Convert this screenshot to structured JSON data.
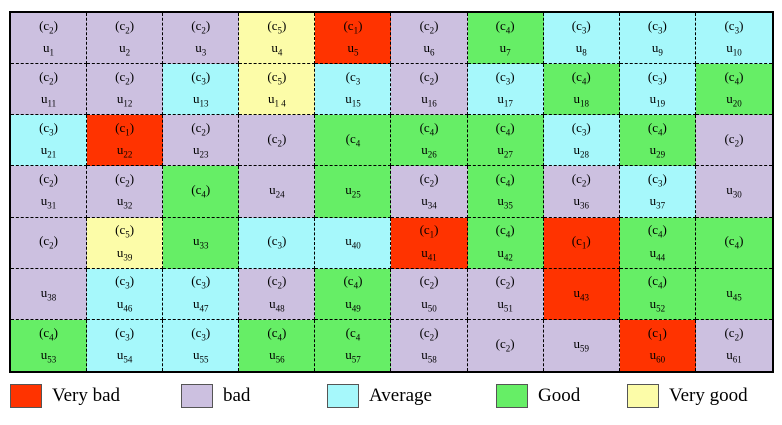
{
  "colors": {
    "c1": "#ff3300",
    "c2": "#ccc0e0",
    "c3": "#a6f8fb",
    "c4": "#66ee66",
    "c5": "#fcfca8"
  },
  "cells": [
    {
      "r": 1,
      "c": 1,
      "rs": 1,
      "cs": 1,
      "cls": "c2",
      "label": "(c",
      "sub": "2",
      "suffix": ")",
      "unit": "u",
      "unit_sub": "1"
    },
    {
      "r": 1,
      "c": 2,
      "rs": 1,
      "cs": 1,
      "cls": "c2",
      "label": "(c",
      "sub": "2",
      "suffix": ")",
      "unit": "u",
      "unit_sub": "2"
    },
    {
      "r": 1,
      "c": 3,
      "rs": 1,
      "cs": 1,
      "cls": "c2",
      "label": "(c",
      "sub": "2",
      "suffix": ")",
      "unit": "u",
      "unit_sub": "3"
    },
    {
      "r": 1,
      "c": 4,
      "rs": 1,
      "cs": 1,
      "cls": "c5",
      "label": "(c",
      "sub": "5",
      "suffix": ")",
      "unit": "u",
      "unit_sub": "4"
    },
    {
      "r": 1,
      "c": 5,
      "rs": 1,
      "cs": 1,
      "cls": "c1",
      "label": "(c",
      "sub": "1",
      "suffix": ")",
      "unit": "u",
      "unit_sub": "5"
    },
    {
      "r": 1,
      "c": 6,
      "rs": 1,
      "cs": 1,
      "cls": "c2",
      "label": "(c",
      "sub": "2",
      "suffix": ")",
      "unit": "u",
      "unit_sub": "6"
    },
    {
      "r": 1,
      "c": 7,
      "rs": 1,
      "cs": 1,
      "cls": "c4",
      "label": "(c",
      "sub": "4",
      "suffix": ")",
      "unit": "u",
      "unit_sub": "7"
    },
    {
      "r": 1,
      "c": 8,
      "rs": 1,
      "cs": 1,
      "cls": "c3",
      "label": "(c",
      "sub": "3",
      "suffix": ")",
      "unit": "u",
      "unit_sub": "8"
    },
    {
      "r": 1,
      "c": 9,
      "rs": 1,
      "cs": 1,
      "cls": "c3",
      "label": "(c",
      "sub": "3",
      "suffix": ")",
      "unit": "u",
      "unit_sub": "9"
    },
    {
      "r": 1,
      "c": 10,
      "rs": 1,
      "cs": 1,
      "cls": "c3",
      "label": "(c",
      "sub": "3",
      "suffix": ")",
      "unit": "u",
      "unit_sub": "10"
    },
    {
      "r": 2,
      "c": 1,
      "rs": 1,
      "cs": 1,
      "cls": "c2",
      "label": "(c",
      "sub": "2",
      "suffix": ")",
      "unit": "u",
      "unit_sub": "11"
    },
    {
      "r": 2,
      "c": 2,
      "rs": 1,
      "cs": 1,
      "cls": "c2",
      "label": "(c",
      "sub": "2",
      "suffix": ")",
      "unit": "u",
      "unit_sub": "12"
    },
    {
      "r": 2,
      "c": 3,
      "rs": 1,
      "cs": 1,
      "cls": "c3",
      "label": "(c",
      "sub": "3",
      "suffix": ")",
      "unit": "u",
      "unit_sub": "13"
    },
    {
      "r": 2,
      "c": 4,
      "rs": 1,
      "cs": 1,
      "cls": "c5",
      "label": "(c",
      "sub": "5",
      "suffix": ")",
      "unit": "u",
      "unit_sub": "1 4"
    },
    {
      "r": 2,
      "c": 5,
      "rs": 1,
      "cs": 1,
      "cls": "c3",
      "label": "(c",
      "sub": "3",
      "suffix": "",
      "unit": "u",
      "unit_sub": "15"
    },
    {
      "r": 2,
      "c": 6,
      "rs": 1,
      "cs": 1,
      "cls": "c2",
      "label": "(c",
      "sub": "2",
      "suffix": ")",
      "unit": "u",
      "unit_sub": "16"
    },
    {
      "r": 2,
      "c": 7,
      "rs": 1,
      "cs": 1,
      "cls": "c3",
      "label": "(c",
      "sub": "3",
      "suffix": ")",
      "unit": "u",
      "unit_sub": "17"
    },
    {
      "r": 2,
      "c": 8,
      "rs": 1,
      "cs": 1,
      "cls": "c4",
      "label": "(c",
      "sub": "4",
      "suffix": ")",
      "unit": "u",
      "unit_sub": "18"
    },
    {
      "r": 2,
      "c": 9,
      "rs": 1,
      "cs": 1,
      "cls": "c3",
      "label": "(c",
      "sub": "3",
      "suffix": ")",
      "unit": "u",
      "unit_sub": "19"
    },
    {
      "r": 2,
      "c": 10,
      "rs": 1,
      "cs": 1,
      "cls": "c4",
      "label": "(c",
      "sub": "4",
      "suffix": ")",
      "unit": "u",
      "unit_sub": "20"
    },
    {
      "r": 3,
      "c": 1,
      "rs": 1,
      "cs": 1,
      "cls": "c3",
      "label": "(c",
      "sub": "3",
      "suffix": ")",
      "unit": "u",
      "unit_sub": "21"
    },
    {
      "r": 3,
      "c": 2,
      "rs": 1,
      "cs": 1,
      "cls": "c1",
      "label": "(c",
      "sub": "1",
      "suffix": ")",
      "unit": "u",
      "unit_sub": "22"
    },
    {
      "r": 3,
      "c": 3,
      "rs": 1,
      "cs": 1,
      "cls": "c2",
      "label": "(c",
      "sub": "2",
      "suffix": ")",
      "unit": "u",
      "unit_sub": "23"
    },
    {
      "r": 3,
      "c": 4,
      "rs": 1,
      "cs": 1,
      "cls": "c2",
      "label": "(c",
      "sub": "2",
      "suffix": ")",
      "unit": "",
      "unit_sub": ""
    },
    {
      "r": 3,
      "c": 5,
      "rs": 1,
      "cs": 1,
      "cls": "c4",
      "label": "(c",
      "sub": "4",
      "suffix": "",
      "unit": "",
      "unit_sub": ""
    },
    {
      "r": 3,
      "c": 6,
      "rs": 1,
      "cs": 1,
      "cls": "c4",
      "label": "(c",
      "sub": "4",
      "suffix": ")",
      "unit": "u",
      "unit_sub": "26"
    },
    {
      "r": 3,
      "c": 7,
      "rs": 1,
      "cs": 1,
      "cls": "c4",
      "label": "(c",
      "sub": "4",
      "suffix": ")",
      "unit": "u",
      "unit_sub": "27"
    },
    {
      "r": 3,
      "c": 8,
      "rs": 1,
      "cs": 1,
      "cls": "c3",
      "label": "(c",
      "sub": "3",
      "suffix": ")",
      "unit": "u",
      "unit_sub": "28"
    },
    {
      "r": 3,
      "c": 9,
      "rs": 1,
      "cs": 1,
      "cls": "c4",
      "label": "(c",
      "sub": "4",
      "suffix": ")",
      "unit": "u",
      "unit_sub": "29"
    },
    {
      "r": 3,
      "c": 10,
      "rs": 1,
      "cs": 1,
      "cls": "c2",
      "label": "(c",
      "sub": "2",
      "suffix": ")",
      "unit": "",
      "unit_sub": ""
    },
    {
      "r": 4,
      "c": 1,
      "rs": 1,
      "cs": 1,
      "cls": "c2",
      "label": "(c",
      "sub": "2",
      "suffix": ")",
      "unit": "u",
      "unit_sub": "31"
    },
    {
      "r": 4,
      "c": 2,
      "rs": 1,
      "cs": 1,
      "cls": "c2",
      "label": "(c",
      "sub": "2",
      "suffix": ")",
      "unit": "u",
      "unit_sub": "32"
    },
    {
      "r": 4,
      "c": 3,
      "rs": 1,
      "cs": 1,
      "cls": "c4",
      "label": "(c",
      "sub": "4",
      "suffix": ")",
      "unit": "",
      "unit_sub": ""
    },
    {
      "r": 4,
      "c": 4,
      "rs": 1,
      "cs": 1,
      "cls": "c2",
      "label": "",
      "sub": "",
      "suffix": "",
      "unit": "u",
      "unit_sub": "24"
    },
    {
      "r": 4,
      "c": 5,
      "rs": 1,
      "cs": 1,
      "cls": "c4",
      "label": "",
      "sub": "",
      "suffix": "",
      "unit": "u",
      "unit_sub": "25"
    },
    {
      "r": 4,
      "c": 6,
      "rs": 1,
      "cs": 1,
      "cls": "c2",
      "label": "(c",
      "sub": "2",
      "suffix": ")",
      "unit": "u",
      "unit_sub": "34"
    },
    {
      "r": 4,
      "c": 7,
      "rs": 1,
      "cs": 1,
      "cls": "c4",
      "label": "(c",
      "sub": "4",
      "suffix": ")",
      "unit": "u",
      "unit_sub": "35"
    },
    {
      "r": 4,
      "c": 8,
      "rs": 1,
      "cs": 1,
      "cls": "c2",
      "label": "(c",
      "sub": "2",
      "suffix": ")",
      "unit": "u",
      "unit_sub": "36"
    },
    {
      "r": 4,
      "c": 9,
      "rs": 1,
      "cs": 1,
      "cls": "c3",
      "label": "(c",
      "sub": "3",
      "suffix": ")",
      "unit": "u",
      "unit_sub": "37"
    },
    {
      "r": 4,
      "c": 10,
      "rs": 1,
      "cs": 1,
      "cls": "c2",
      "label": "",
      "sub": "",
      "suffix": "",
      "unit": "u",
      "unit_sub": "30"
    },
    {
      "r": 5,
      "c": 1,
      "rs": 1,
      "cs": 1,
      "cls": "c2",
      "label": "(c",
      "sub": "2",
      "suffix": ")",
      "unit": "",
      "unit_sub": ""
    },
    {
      "r": 5,
      "c": 2,
      "rs": 1,
      "cs": 1,
      "cls": "c5",
      "label": "(c",
      "sub": "5",
      "suffix": ")",
      "unit": "u",
      "unit_sub": "39"
    },
    {
      "r": 5,
      "c": 3,
      "rs": 1,
      "cs": 1,
      "cls": "c4",
      "label": "",
      "sub": "",
      "suffix": "",
      "unit": "u",
      "unit_sub": "33"
    },
    {
      "r": 5,
      "c": 4,
      "rs": 1,
      "cs": 1,
      "cls": "c3",
      "label": "(c",
      "sub": "3",
      "suffix": ")",
      "unit": "",
      "unit_sub": ""
    },
    {
      "r": 5,
      "c": 5,
      "rs": 1,
      "cs": 1,
      "cls": "c3",
      "label": "",
      "sub": "",
      "suffix": "",
      "unit": "u",
      "unit_sub": "40"
    },
    {
      "r": 5,
      "c": 6,
      "rs": 1,
      "cs": 1,
      "cls": "c1",
      "label": "(c",
      "sub": "1",
      "suffix": ")",
      "unit": "u",
      "unit_sub": "41"
    },
    {
      "r": 5,
      "c": 7,
      "rs": 1,
      "cs": 1,
      "cls": "c4",
      "label": "(c",
      "sub": "4",
      "suffix": ")",
      "unit": "u",
      "unit_sub": "42"
    },
    {
      "r": 5,
      "c": 8,
      "rs": 1,
      "cs": 1,
      "cls": "c1",
      "label": "(c",
      "sub": "1",
      "suffix": ")",
      "unit": "",
      "unit_sub": ""
    },
    {
      "r": 5,
      "c": 9,
      "rs": 1,
      "cs": 1,
      "cls": "c4",
      "label": "(c",
      "sub": "4",
      "suffix": ")",
      "unit": "u",
      "unit_sub": "44"
    },
    {
      "r": 5,
      "c": 10,
      "rs": 1,
      "cs": 1,
      "cls": "c4",
      "label": "(c",
      "sub": "4",
      "suffix": ")",
      "unit": "",
      "unit_sub": ""
    },
    {
      "r": 6,
      "c": 1,
      "rs": 1,
      "cs": 1,
      "cls": "c2",
      "label": "",
      "sub": "",
      "suffix": "",
      "unit": "u",
      "unit_sub": "38"
    },
    {
      "r": 6,
      "c": 2,
      "rs": 1,
      "cs": 1,
      "cls": "c3",
      "label": "(c",
      "sub": "3",
      "suffix": ")",
      "unit": "u",
      "unit_sub": "46"
    },
    {
      "r": 6,
      "c": 3,
      "rs": 1,
      "cs": 1,
      "cls": "c3",
      "label": "(c",
      "sub": "3",
      "suffix": ")",
      "unit": "u",
      "unit_sub": "47"
    },
    {
      "r": 6,
      "c": 4,
      "rs": 1,
      "cs": 1,
      "cls": "c2",
      "label": "(c",
      "sub": "2",
      "suffix": ")",
      "unit": "u",
      "unit_sub": "48"
    },
    {
      "r": 6,
      "c": 5,
      "rs": 1,
      "cs": 1,
      "cls": "c4",
      "label": "(c",
      "sub": "4",
      "suffix": ")",
      "unit": "u",
      "unit_sub": "49"
    },
    {
      "r": 6,
      "c": 6,
      "rs": 1,
      "cs": 1,
      "cls": "c2",
      "label": "(c",
      "sub": "2",
      "suffix": ")",
      "unit": "u",
      "unit_sub": "50"
    },
    {
      "r": 6,
      "c": 7,
      "rs": 1,
      "cs": 1,
      "cls": "c2",
      "label": "(c",
      "sub": "2",
      "suffix": ")",
      "unit": "u",
      "unit_sub": "51"
    },
    {
      "r": 6,
      "c": 8,
      "rs": 1,
      "cs": 1,
      "cls": "c1",
      "label": "",
      "sub": "",
      "suffix": "",
      "unit": "u",
      "unit_sub": "43"
    },
    {
      "r": 6,
      "c": 9,
      "rs": 1,
      "cs": 1,
      "cls": "c4",
      "label": "(c",
      "sub": "4",
      "suffix": ")",
      "unit": "u",
      "unit_sub": "52"
    },
    {
      "r": 6,
      "c": 10,
      "rs": 1,
      "cs": 1,
      "cls": "c4",
      "label": "",
      "sub": "",
      "suffix": "",
      "unit": "u",
      "unit_sub": "45"
    },
    {
      "r": 7,
      "c": 1,
      "rs": 1,
      "cs": 1,
      "cls": "c4",
      "label": "(c",
      "sub": "4",
      "suffix": ")",
      "unit": "u",
      "unit_sub": "53"
    },
    {
      "r": 7,
      "c": 2,
      "rs": 1,
      "cs": 1,
      "cls": "c3",
      "label": "(c",
      "sub": "3",
      "suffix": ")",
      "unit": "u",
      "unit_sub": "54"
    },
    {
      "r": 7,
      "c": 3,
      "rs": 1,
      "cs": 1,
      "cls": "c3",
      "label": "(c",
      "sub": "3",
      "suffix": ")",
      "unit": "u",
      "unit_sub": "55"
    },
    {
      "r": 7,
      "c": 4,
      "rs": 1,
      "cs": 1,
      "cls": "c4",
      "label": "(c",
      "sub": "4",
      "suffix": ")",
      "unit": "u",
      "unit_sub": "56"
    },
    {
      "r": 7,
      "c": 5,
      "rs": 1,
      "cs": 1,
      "cls": "c4",
      "label": "(c",
      "sub": "4",
      "suffix": "",
      "unit": "u",
      "unit_sub": "57"
    },
    {
      "r": 7,
      "c": 6,
      "rs": 1,
      "cs": 1,
      "cls": "c2",
      "label": "(c",
      "sub": "2",
      "suffix": ")",
      "unit": "u",
      "unit_sub": "58"
    },
    {
      "r": 7,
      "c": 7,
      "rs": 1,
      "cs": 1,
      "cls": "c2",
      "label": "(c",
      "sub": "2",
      "suffix": ")",
      "unit": "",
      "unit_sub": ""
    },
    {
      "r": 7,
      "c": 8,
      "rs": 1,
      "cs": 1,
      "cls": "c2",
      "label": "",
      "sub": "",
      "suffix": "",
      "unit": "u",
      "unit_sub": "59"
    },
    {
      "r": 7,
      "c": 9,
      "rs": 1,
      "cs": 1,
      "cls": "c1",
      "label": "(c",
      "sub": "1",
      "suffix": ")",
      "unit": "u",
      "unit_sub": "60"
    },
    {
      "r": 7,
      "c": 10,
      "rs": 1,
      "cs": 1,
      "cls": "c2",
      "label": "(c",
      "sub": "2",
      "suffix": ")",
      "unit": "u",
      "unit_sub": "61"
    }
  ],
  "legend": [
    {
      "cls": "c1",
      "label": "Very bad"
    },
    {
      "cls": "c2",
      "label": "bad"
    },
    {
      "cls": "c3",
      "label": "Average"
    },
    {
      "cls": "c4",
      "label": "Good"
    },
    {
      "cls": "c5",
      "label": "Very good"
    }
  ]
}
